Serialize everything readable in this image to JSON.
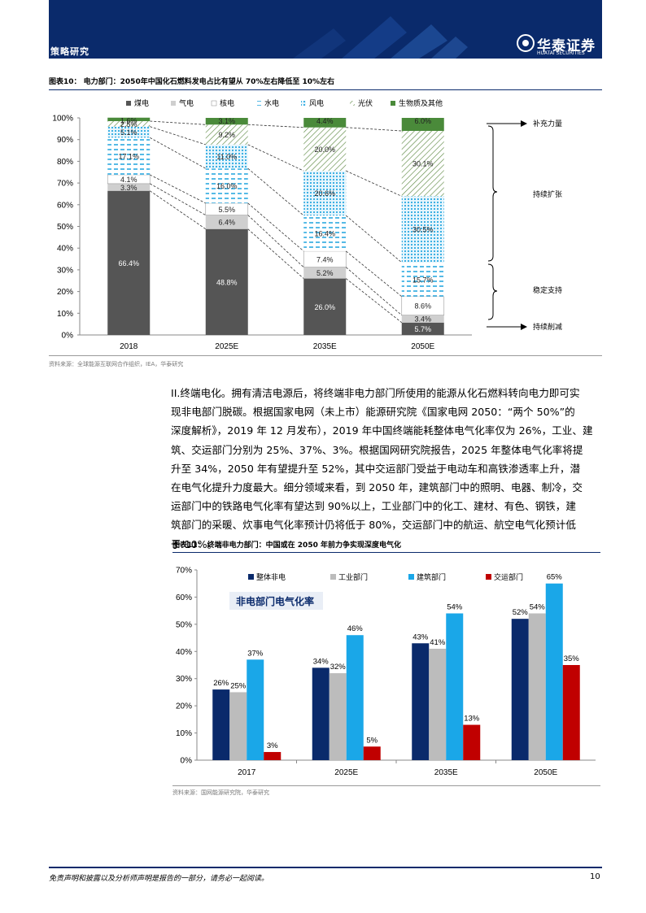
{
  "header": {
    "section": "策略研究",
    "logo_name": "华泰证券",
    "logo_sub": "HUATAI SECURITIES"
  },
  "figure10": {
    "title": "图表10：  电力部门：2050年中国化石燃料发电占比有望从 70%左右降低至 10%左右",
    "source": "资料来源：全球能源互联网合作组织，IEA，华泰研究",
    "annotations": [
      "补充力量",
      "持续扩张",
      "稳定支持",
      "持续削减"
    ]
  },
  "paragraph": {
    "lines": [
      "II.终端电化。拥有清洁电源后，将终端非电力部门所使用的能源从化石燃料转向电力即可实",
      "现非电部门脱碳。根据国家电网（未上市）能源研究院《国家电网 2050：“两个 50%”的",
      "深度解析》，2019 年 12 月发布），2019 年中国终端能耗整体电气化率仅为 26%，工业、建",
      "筑、交运部门分别为 25%、37%、3%。根据国网研究院报告，2025 年整体电气化率将提",
      "升至 34%，2050 年有望提升至 52%，其中交运部门受益于电动车和高铁渗透率上升，潜",
      "在电气化提升力度最大。细分领域来看，到 2050 年，建筑部门中的照明、电器、制冷，交",
      "运部门中的铁路电气化率有望达到 90%以上，工业部门中的化工、建材、有色、钢铁，建",
      "筑部门的采暖、炊事电气化率预计仍将低于 80%，交运部门中的航运、航空电气化预计低",
      "于 10%。"
    ]
  },
  "figure11": {
    "title": "图表11：  终端非电力部门：中国或在 2050 年前力争实现深度电气化",
    "source": "资料来源：国网能源研究院，华泰研究",
    "inner_label": "非电部门电气化率"
  },
  "footer": {
    "disclaimer": "免责声明和披露以及分析师声明是报告的一部分，请务必一起阅读。",
    "page": "10"
  },
  "chart_data": [
    {
      "type": "bar",
      "stacked": true,
      "percent": true,
      "categories": [
        "2018",
        "2025E",
        "2035E",
        "2050E"
      ],
      "series": [
        {
          "name": "煤电",
          "color": "#555555",
          "values": [
            66.4,
            48.8,
            26.0,
            5.7
          ]
        },
        {
          "name": "气电",
          "color": "#cfcfcf",
          "values": [
            3.3,
            6.4,
            5.2,
            3.4
          ]
        },
        {
          "name": "核电",
          "color": "#ffffff",
          "values": [
            4.1,
            5.5,
            7.4,
            8.6
          ]
        },
        {
          "name": "水电",
          "color": "#2aa8e0",
          "values": [
            17.1,
            16.0,
            16.4,
            15.7
          ]
        },
        {
          "name": "风电",
          "color": "#3bb2e8",
          "values": [
            5.1,
            11.0,
            20.6,
            30.5
          ]
        },
        {
          "name": "光伏",
          "color": "#7a9a5a",
          "values": [
            2.5,
            9.2,
            20.0,
            30.1
          ]
        },
        {
          "name": "生物质及其他",
          "color": "#4a8a3a",
          "values": [
            1.6,
            3.1,
            4.4,
            6.0
          ]
        }
      ],
      "labels": [
        [
          "66.4%",
          "48.8%",
          "26.0%",
          "5.7%"
        ],
        [
          "3.3%",
          "6.4%",
          "5.2%",
          "3.4%"
        ],
        [
          "4.1%",
          "5.5%",
          "7.4%",
          "8.6%"
        ],
        [
          "17.1%",
          "16.0%",
          "16.4%",
          "15.7%"
        ],
        [
          "5.1%",
          "11.0%",
          "20.6%",
          "30.5%"
        ],
        [
          "2.5%",
          "9.2%",
          "20.0%",
          "30.1%"
        ],
        [
          "1.6%",
          "3.1%",
          "4.4%",
          "6.0%"
        ]
      ],
      "ylim": [
        0,
        100
      ],
      "yticks": [
        "0%",
        "10%",
        "20%",
        "30%",
        "40%",
        "50%",
        "60%",
        "70%",
        "80%",
        "90%",
        "100%"
      ]
    },
    {
      "type": "bar",
      "categories": [
        "2017",
        "2025E",
        "2035E",
        "2050E"
      ],
      "series": [
        {
          "name": "整体非电",
          "color": "#0a2a6b",
          "values": [
            26,
            34,
            43,
            52
          ]
        },
        {
          "name": "工业部门",
          "color": "#bcbcbc",
          "values": [
            25,
            32,
            41,
            54
          ]
        },
        {
          "name": "建筑部门",
          "color": "#1aa7e8",
          "values": [
            37,
            46,
            54,
            65
          ]
        },
        {
          "name": "交运部门",
          "color": "#c00000",
          "values": [
            3,
            5,
            13,
            35
          ]
        }
      ],
      "labels": [
        [
          "26%",
          "34%",
          "43%",
          "52%"
        ],
        [
          "25%",
          "32%",
          "41%",
          "54%"
        ],
        [
          "37%",
          "46%",
          "54%",
          "65%"
        ],
        [
          "3%",
          "5%",
          "13%",
          "35%"
        ]
      ],
      "ylim": [
        0,
        70
      ],
      "yticks": [
        "0%",
        "10%",
        "20%",
        "30%",
        "40%",
        "50%",
        "60%",
        "70%"
      ]
    }
  ]
}
